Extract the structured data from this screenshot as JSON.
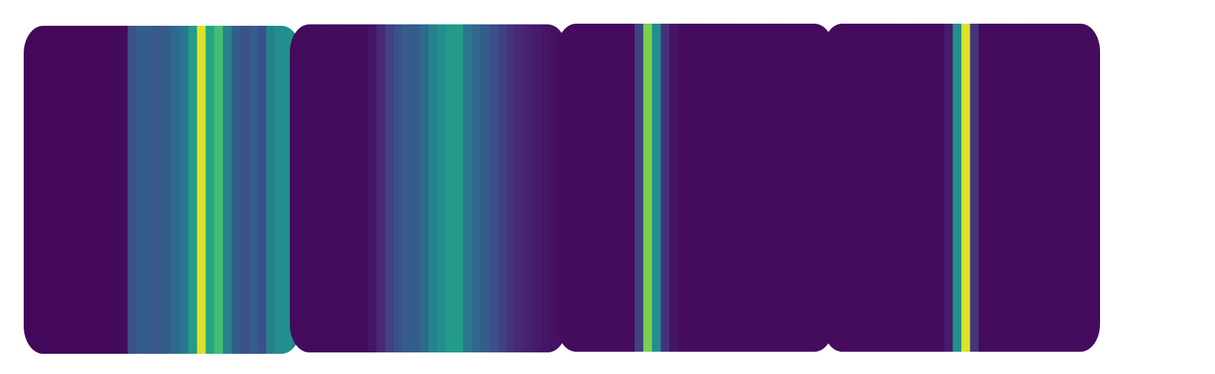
{
  "chart_data": [
    {
      "type": "heatmap",
      "colormap": "viridis",
      "values": [
        0.02,
        0.02,
        0.02,
        0.02,
        0.02,
        0.02,
        0.02,
        0.02,
        0.02,
        0.02,
        0.02,
        0.03,
        0.25,
        0.3,
        0.3,
        0.28,
        0.3,
        0.35,
        0.4,
        0.55,
        0.95,
        0.6,
        0.7,
        0.45,
        0.3,
        0.25,
        0.3,
        0.25,
        0.45,
        0.5,
        0.5,
        0.45
      ]
    },
    {
      "type": "heatmap",
      "colormap": "viridis",
      "values": [
        0.03,
        0.03,
        0.03,
        0.03,
        0.03,
        0.03,
        0.03,
        0.03,
        0.03,
        0.06,
        0.12,
        0.2,
        0.25,
        0.3,
        0.3,
        0.35,
        0.45,
        0.5,
        0.55,
        0.55,
        0.4,
        0.35,
        0.3,
        0.25,
        0.2,
        0.15,
        0.12,
        0.1,
        0.08,
        0.06,
        0.05,
        0.04
      ]
    },
    {
      "type": "heatmap",
      "colormap": "viridis",
      "values": [
        0.03,
        0.03,
        0.03,
        0.03,
        0.03,
        0.03,
        0.03,
        0.03,
        0.03,
        0.2,
        0.8,
        0.5,
        0.15,
        0.06,
        0.03,
        0.03,
        0.03,
        0.03,
        0.03,
        0.03,
        0.03,
        0.03,
        0.03,
        0.03,
        0.03,
        0.03,
        0.03,
        0.03,
        0.03,
        0.03,
        0.03,
        0.03
      ]
    },
    {
      "type": "heatmap",
      "colormap": "viridis",
      "values": [
        0.03,
        0.03,
        0.03,
        0.03,
        0.03,
        0.03,
        0.03,
        0.03,
        0.03,
        0.03,
        0.03,
        0.03,
        0.03,
        0.03,
        0.08,
        0.5,
        0.95,
        0.15,
        0.03,
        0.03,
        0.03,
        0.03,
        0.03,
        0.03,
        0.03,
        0.03,
        0.03,
        0.03,
        0.03,
        0.03,
        0.03,
        0.03
      ]
    }
  ]
}
